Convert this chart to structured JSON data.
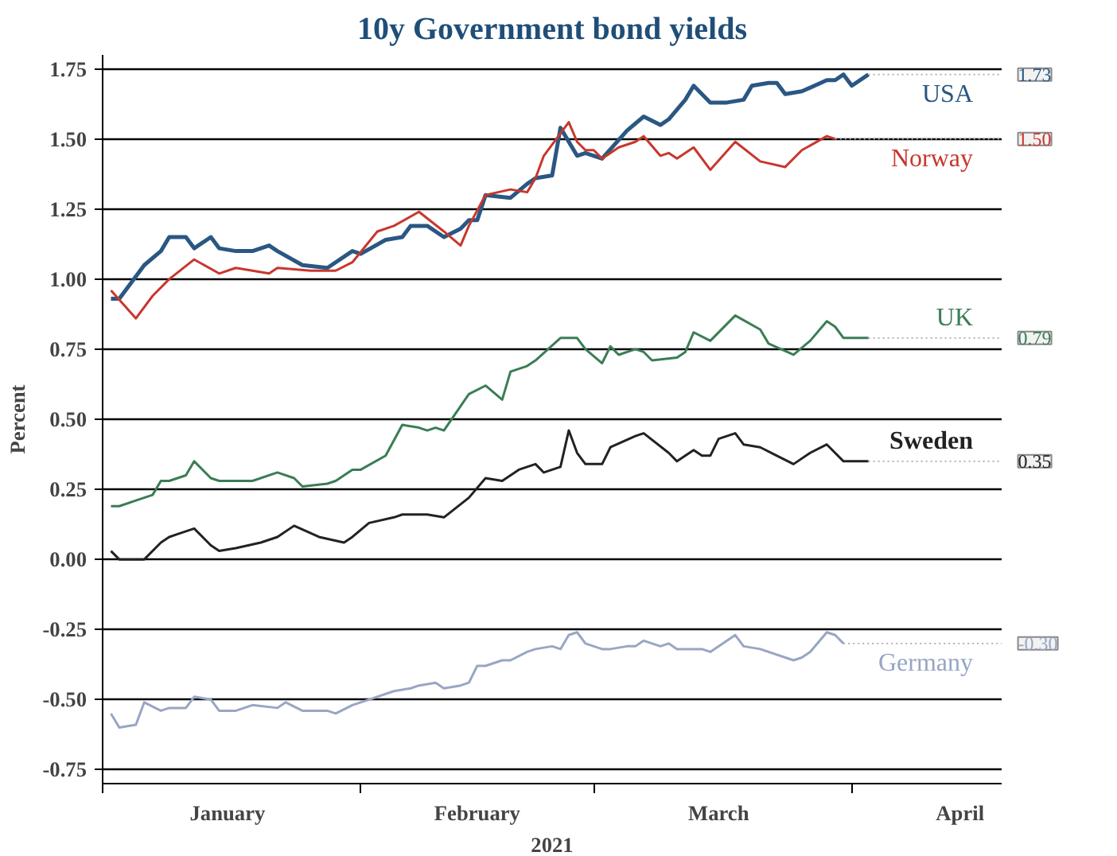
{
  "chart_data": {
    "type": "line",
    "title": "10y Government bond yields",
    "xlabel": "2021",
    "ylabel": "Percent",
    "xlim": [
      "2021-01-01",
      "2021-04-19"
    ],
    "xticks": [
      {
        "value": "2021-01-01",
        "label": null
      },
      {
        "value": "2021-01-16",
        "label": "January"
      },
      {
        "value": "2021-02-01",
        "label": null
      },
      {
        "value": "2021-02-15",
        "label": "February"
      },
      {
        "value": "2021-03-01",
        "label": null
      },
      {
        "value": "2021-03-16",
        "label": "March"
      },
      {
        "value": "2021-04-01",
        "label": null
      },
      {
        "value": "2021-04-14",
        "label": "April"
      }
    ],
    "ylim": [
      -0.8,
      1.8
    ],
    "yticks": [
      {
        "value": -0.75,
        "label": "-0.75"
      },
      {
        "value": -0.5,
        "label": "-0.50"
      },
      {
        "value": -0.25,
        "label": "-0.25"
      },
      {
        "value": 0,
        "label": "0.00"
      },
      {
        "value": 0.25,
        "label": "0.25"
      },
      {
        "value": 0.5,
        "label": "0.50"
      },
      {
        "value": 0.75,
        "label": "0.75"
      },
      {
        "value": 1.0,
        "label": "1.00"
      },
      {
        "value": 1.25,
        "label": "1.25"
      },
      {
        "value": 1.5,
        "label": "1.50"
      },
      {
        "value": 1.75,
        "label": "1.75"
      }
    ],
    "grid": "y",
    "legend": false,
    "line_style": "solid",
    "series": [
      {
        "name": "USA",
        "color": "#2a5783",
        "x": [
          "2021-01-02",
          "2021-01-03",
          "2021-01-04",
          "2021-01-06",
          "2021-01-08",
          "2021-01-09",
          "2021-01-11",
          "2021-01-12",
          "2021-01-14",
          "2021-01-15",
          "2021-01-17",
          "2021-01-19",
          "2021-01-21",
          "2021-01-22",
          "2021-01-25",
          "2021-01-28",
          "2021-01-31",
          "2021-02-01",
          "2021-02-04",
          "2021-02-06",
          "2021-02-07",
          "2021-02-09",
          "2021-02-11",
          "2021-02-13",
          "2021-02-14",
          "2021-02-15",
          "2021-02-16",
          "2021-02-19",
          "2021-02-21",
          "2021-02-22",
          "2021-02-24",
          "2021-02-25",
          "2021-02-27",
          "2021-02-28",
          "2021-03-02",
          "2021-03-05",
          "2021-03-07",
          "2021-03-09",
          "2021-03-10",
          "2021-03-12",
          "2021-03-13",
          "2021-03-15",
          "2021-03-17",
          "2021-03-19",
          "2021-03-20",
          "2021-03-22",
          "2021-03-23",
          "2021-03-24",
          "2021-03-26",
          "2021-03-29",
          "2021-03-30",
          "2021-03-31",
          "2021-04-01",
          "2021-04-03"
        ],
        "values": [
          0.93,
          0.93,
          0.97,
          1.05,
          1.1,
          1.15,
          1.15,
          1.11,
          1.15,
          1.11,
          1.1,
          1.1,
          1.12,
          1.1,
          1.05,
          1.04,
          1.1,
          1.09,
          1.14,
          1.15,
          1.19,
          1.19,
          1.15,
          1.18,
          1.21,
          1.21,
          1.3,
          1.29,
          1.34,
          1.36,
          1.37,
          1.54,
          1.44,
          1.45,
          1.43,
          1.53,
          1.58,
          1.55,
          1.57,
          1.64,
          1.69,
          1.63,
          1.63,
          1.64,
          1.69,
          1.7,
          1.7,
          1.66,
          1.67,
          1.71,
          1.71,
          1.73,
          1.69,
          1.73
        ],
        "value_labels": [
          null,
          null,
          null,
          null,
          null,
          null,
          null,
          null,
          null,
          null,
          null,
          null,
          null,
          null,
          null,
          null,
          null,
          null,
          null,
          null,
          null,
          null,
          null,
          null,
          null,
          null,
          null,
          null,
          null,
          null,
          null,
          null,
          null,
          null,
          null,
          null,
          null,
          null,
          null,
          null,
          null,
          null,
          null,
          null,
          null,
          null,
          null,
          null,
          null,
          null,
          null,
          null,
          null,
          "1.73"
        ]
      },
      {
        "name": "Norway",
        "color": "#c8372d",
        "x": [
          "2021-01-02",
          "2021-01-05",
          "2021-01-07",
          "2021-01-09",
          "2021-01-12",
          "2021-01-15",
          "2021-01-17",
          "2021-01-21",
          "2021-01-22",
          "2021-01-26",
          "2021-01-29",
          "2021-01-31",
          "2021-02-03",
          "2021-02-05",
          "2021-02-08",
          "2021-02-11",
          "2021-02-13",
          "2021-02-14",
          "2021-02-16",
          "2021-02-19",
          "2021-02-21",
          "2021-02-22",
          "2021-02-23",
          "2021-02-26",
          "2021-02-27",
          "2021-02-28",
          "2021-03-01",
          "2021-03-02",
          "2021-03-04",
          "2021-03-06",
          "2021-03-07",
          "2021-03-09",
          "2021-03-10",
          "2021-03-11",
          "2021-03-13",
          "2021-03-15",
          "2021-03-18",
          "2021-03-21",
          "2021-03-24",
          "2021-03-26",
          "2021-03-29",
          "2021-03-30"
        ],
        "values": [
          0.96,
          0.86,
          0.94,
          1.0,
          1.07,
          1.02,
          1.04,
          1.02,
          1.04,
          1.03,
          1.03,
          1.06,
          1.17,
          1.19,
          1.24,
          1.17,
          1.12,
          1.19,
          1.3,
          1.32,
          1.31,
          1.36,
          1.44,
          1.56,
          1.49,
          1.46,
          1.46,
          1.43,
          1.47,
          1.49,
          1.51,
          1.44,
          1.45,
          1.43,
          1.47,
          1.39,
          1.49,
          1.42,
          1.4,
          1.46,
          1.51,
          1.5
        ],
        "value_labels": [
          null,
          null,
          null,
          null,
          null,
          null,
          null,
          null,
          null,
          null,
          null,
          null,
          null,
          null,
          null,
          null,
          null,
          null,
          null,
          null,
          null,
          null,
          null,
          null,
          null,
          null,
          null,
          null,
          null,
          null,
          null,
          null,
          null,
          null,
          null,
          null,
          null,
          null,
          null,
          null,
          null,
          "1.50"
        ]
      },
      {
        "name": "UK",
        "color": "#3a7d55",
        "x": [
          "2021-01-02",
          "2021-01-03",
          "2021-01-05",
          "2021-01-07",
          "2021-01-08",
          "2021-01-09",
          "2021-01-11",
          "2021-01-12",
          "2021-01-14",
          "2021-01-15",
          "2021-01-17",
          "2021-01-19",
          "2021-01-22",
          "2021-01-24",
          "2021-01-25",
          "2021-01-28",
          "2021-01-29",
          "2021-01-31",
          "2021-02-01",
          "2021-02-04",
          "2021-02-06",
          "2021-02-08",
          "2021-02-09",
          "2021-02-10",
          "2021-02-11",
          "2021-02-14",
          "2021-02-16",
          "2021-02-18",
          "2021-02-19",
          "2021-02-21",
          "2021-02-22",
          "2021-02-25",
          "2021-02-27",
          "2021-02-28",
          "2021-03-02",
          "2021-03-03",
          "2021-03-04",
          "2021-03-06",
          "2021-03-07",
          "2021-03-08",
          "2021-03-11",
          "2021-03-12",
          "2021-03-13",
          "2021-03-15",
          "2021-03-18",
          "2021-03-21",
          "2021-03-22",
          "2021-03-25",
          "2021-03-27",
          "2021-03-29",
          "2021-03-30",
          "2021-03-31",
          "2021-04-03"
        ],
        "values": [
          0.19,
          0.19,
          0.21,
          0.23,
          0.28,
          0.28,
          0.3,
          0.35,
          0.29,
          0.28,
          0.28,
          0.28,
          0.31,
          0.29,
          0.26,
          0.27,
          0.28,
          0.32,
          0.32,
          0.37,
          0.48,
          0.47,
          0.46,
          0.47,
          0.46,
          0.59,
          0.62,
          0.57,
          0.67,
          0.69,
          0.71,
          0.79,
          0.79,
          0.75,
          0.7,
          0.76,
          0.73,
          0.75,
          0.74,
          0.71,
          0.72,
          0.74,
          0.81,
          0.78,
          0.87,
          0.82,
          0.77,
          0.73,
          0.78,
          0.85,
          0.83,
          0.79,
          0.79
        ],
        "value_labels": [
          null,
          null,
          null,
          null,
          null,
          null,
          null,
          null,
          null,
          null,
          null,
          null,
          null,
          null,
          null,
          null,
          null,
          null,
          null,
          null,
          null,
          null,
          null,
          null,
          null,
          null,
          null,
          null,
          null,
          null,
          null,
          null,
          null,
          null,
          null,
          null,
          null,
          null,
          null,
          null,
          null,
          null,
          null,
          null,
          null,
          null,
          null,
          null,
          null,
          null,
          null,
          null,
          "0.79"
        ]
      },
      {
        "name": "Sweden",
        "color": "#222222",
        "x": [
          "2021-01-02",
          "2021-01-03",
          "2021-01-06",
          "2021-01-08",
          "2021-01-09",
          "2021-01-10",
          "2021-01-12",
          "2021-01-14",
          "2021-01-15",
          "2021-01-17",
          "2021-01-20",
          "2021-01-22",
          "2021-01-24",
          "2021-01-27",
          "2021-01-30",
          "2021-01-31",
          "2021-02-02",
          "2021-02-05",
          "2021-02-06",
          "2021-02-09",
          "2021-02-11",
          "2021-02-14",
          "2021-02-16",
          "2021-02-18",
          "2021-02-20",
          "2021-02-22",
          "2021-02-23",
          "2021-02-25",
          "2021-02-26",
          "2021-02-27",
          "2021-02-28",
          "2021-03-02",
          "2021-03-03",
          "2021-03-06",
          "2021-03-07",
          "2021-03-10",
          "2021-03-11",
          "2021-03-13",
          "2021-03-14",
          "2021-03-15",
          "2021-03-16",
          "2021-03-18",
          "2021-03-19",
          "2021-03-21",
          "2021-03-23",
          "2021-03-25",
          "2021-03-27",
          "2021-03-29",
          "2021-03-31",
          "2021-04-03"
        ],
        "values": [
          0.03,
          0.0,
          0.0,
          0.06,
          0.08,
          0.09,
          0.11,
          0.05,
          0.03,
          0.04,
          0.06,
          0.08,
          0.12,
          0.08,
          0.06,
          0.08,
          0.13,
          0.15,
          0.16,
          0.16,
          0.15,
          0.22,
          0.29,
          0.28,
          0.32,
          0.34,
          0.31,
          0.33,
          0.46,
          0.38,
          0.34,
          0.34,
          0.4,
          0.44,
          0.45,
          0.38,
          0.35,
          0.39,
          0.37,
          0.37,
          0.43,
          0.45,
          0.41,
          0.4,
          0.37,
          0.34,
          0.38,
          0.41,
          0.35,
          0.35
        ],
        "value_labels": [
          null,
          null,
          null,
          null,
          null,
          null,
          null,
          null,
          null,
          null,
          null,
          null,
          null,
          null,
          null,
          null,
          null,
          null,
          null,
          null,
          null,
          null,
          null,
          null,
          null,
          null,
          null,
          null,
          null,
          null,
          null,
          null,
          null,
          null,
          null,
          null,
          null,
          null,
          null,
          null,
          null,
          null,
          null,
          null,
          null,
          null,
          null,
          null,
          null,
          "0.35"
        ]
      },
      {
        "name": "Germany",
        "color": "#98a6c4",
        "x": [
          "2021-01-02",
          "2021-01-03",
          "2021-01-05",
          "2021-01-06",
          "2021-01-08",
          "2021-01-09",
          "2021-01-11",
          "2021-01-12",
          "2021-01-14",
          "2021-01-15",
          "2021-01-17",
          "2021-01-19",
          "2021-01-22",
          "2021-01-23",
          "2021-01-25",
          "2021-01-28",
          "2021-01-29",
          "2021-01-31",
          "2021-02-02",
          "2021-02-05",
          "2021-02-07",
          "2021-02-08",
          "2021-02-10",
          "2021-02-11",
          "2021-02-13",
          "2021-02-14",
          "2021-02-15",
          "2021-02-16",
          "2021-02-18",
          "2021-02-19",
          "2021-02-21",
          "2021-02-22",
          "2021-02-24",
          "2021-02-25",
          "2021-02-26",
          "2021-02-27",
          "2021-02-28",
          "2021-03-02",
          "2021-03-03",
          "2021-03-05",
          "2021-03-06",
          "2021-03-07",
          "2021-03-09",
          "2021-03-10",
          "2021-03-11",
          "2021-03-14",
          "2021-03-15",
          "2021-03-18",
          "2021-03-19",
          "2021-03-21",
          "2021-03-25",
          "2021-03-26",
          "2021-03-27",
          "2021-03-29",
          "2021-03-30",
          "2021-03-31"
        ],
        "values": [
          -0.55,
          -0.6,
          -0.59,
          -0.51,
          -0.54,
          -0.53,
          -0.53,
          -0.49,
          -0.5,
          -0.54,
          -0.54,
          -0.52,
          -0.53,
          -0.51,
          -0.54,
          -0.54,
          -0.55,
          -0.52,
          -0.5,
          -0.47,
          -0.46,
          -0.45,
          -0.44,
          -0.46,
          -0.45,
          -0.44,
          -0.38,
          -0.38,
          -0.36,
          -0.36,
          -0.33,
          -0.32,
          -0.31,
          -0.32,
          -0.27,
          -0.26,
          -0.3,
          -0.32,
          -0.32,
          -0.31,
          -0.31,
          -0.29,
          -0.31,
          -0.3,
          -0.32,
          -0.32,
          -0.33,
          -0.27,
          -0.31,
          -0.32,
          -0.36,
          -0.35,
          -0.33,
          -0.26,
          -0.27,
          -0.3
        ],
        "value_labels": [
          null,
          null,
          null,
          null,
          null,
          null,
          null,
          null,
          null,
          null,
          null,
          null,
          null,
          null,
          null,
          null,
          null,
          null,
          null,
          null,
          null,
          null,
          null,
          null,
          null,
          null,
          null,
          null,
          null,
          null,
          null,
          null,
          null,
          null,
          null,
          null,
          null,
          null,
          null,
          null,
          null,
          null,
          null,
          null,
          null,
          null,
          null,
          null,
          null,
          null,
          null,
          null,
          null,
          null,
          null,
          "-0.30"
        ]
      }
    ]
  }
}
